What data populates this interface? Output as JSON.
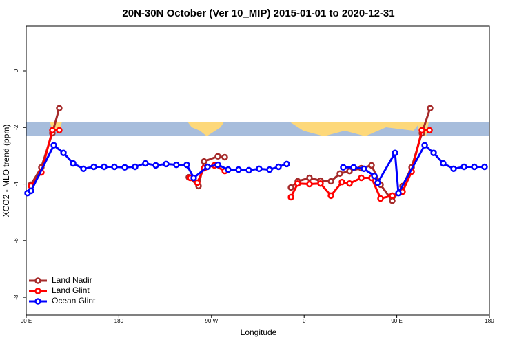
{
  "chart_data": {
    "type": "line",
    "title": "20N-30N October (Ver 10_MIP)   2015-01-01 to 2020-12-31",
    "x_label": "Longitude",
    "y_label": "XCO2 - MLO trend (ppm)",
    "xlim": [
      90,
      540
    ],
    "ylim": [
      -8.63,
      1.58
    ],
    "xticks": [
      {
        "value": 90,
        "label": "90 E"
      },
      {
        "value": 180,
        "label": "180"
      },
      {
        "value": 270,
        "label": "90 W"
      },
      {
        "value": 360,
        "label": "0"
      },
      {
        "value": 450,
        "label": "90 E"
      },
      {
        "value": 540,
        "label": "180"
      }
    ],
    "yticks": [
      0,
      -2,
      -4,
      -6,
      -8
    ],
    "legend": "bottom-left",
    "series": [
      {
        "name": "Land Nadir",
        "color": "#a52a2a",
        "x": [
          94.7,
          104.7,
          115.4,
          122.1,
          null,
          248.0,
          257.4,
          262.8,
          276.2,
          282.9,
          null,
          347.2,
          353.8,
          365.2,
          375.9,
          386.0,
          394.7,
          404.1,
          415.5,
          425.5,
          434.2,
          445.6,
          455.6,
          464.4,
          474.4,
          482.4
        ],
        "values": [
          -4.02,
          -3.41,
          -2.2,
          -1.32,
          null,
          -3.76,
          -4.07,
          -3.2,
          -3.02,
          -3.05,
          null,
          -4.12,
          -3.9,
          -3.78,
          -3.88,
          -3.9,
          -3.63,
          -3.54,
          -3.44,
          -3.34,
          -4.02,
          -4.59,
          -4.07,
          -3.41,
          -2.2,
          -1.32
        ]
      },
      {
        "name": "Land Glint",
        "color": "#ff0000",
        "x": [
          94.7,
          104.7,
          115.4,
          122.1,
          null,
          249.4,
          256.1,
          262.8,
          272.8,
          282.9,
          null,
          347.2,
          353.8,
          365.2,
          375.9,
          386.0,
          396.7,
          404.1,
          415.5,
          425.5,
          434.2,
          445.6,
          455.6,
          464.4,
          474.4,
          481.8
        ],
        "values": [
          -4.07,
          -3.59,
          -2.1,
          -2.1,
          null,
          -3.78,
          -3.95,
          -3.44,
          -3.34,
          -3.54,
          null,
          -4.46,
          -3.98,
          -4.0,
          -3.98,
          -4.41,
          -3.93,
          -3.98,
          -3.78,
          -3.78,
          -4.51,
          -4.41,
          -4.27,
          -3.56,
          -2.1,
          -2.1
        ]
      },
      {
        "name": "Ocean Glint",
        "color": "#0000ff",
        "x": [
          91.3,
          94.7,
          116.8,
          126.2,
          135.6,
          145.6,
          155.7,
          165.7,
          175.7,
          185.8,
          195.8,
          205.8,
          215.9,
          225.9,
          235.9,
          246.0,
          252.7,
          266.1,
          276.2,
          286.2,
          296.3,
          306.3,
          316.3,
          326.4,
          335.1,
          343.1,
          null,
          398.0,
          408.1,
          418.1,
          428.2,
          431.5,
          448.3,
          451.6,
          477.1,
          485.8,
          495.1,
          505.2,
          515.3,
          525.3,
          535.3
        ],
        "values": [
          -4.32,
          -4.24,
          -2.63,
          -2.9,
          -3.27,
          -3.46,
          -3.39,
          -3.39,
          -3.39,
          -3.41,
          -3.39,
          -3.27,
          -3.34,
          -3.29,
          -3.32,
          -3.32,
          -3.78,
          -3.39,
          -3.32,
          -3.49,
          -3.49,
          -3.51,
          -3.46,
          -3.49,
          -3.39,
          -3.29,
          null,
          -3.41,
          -3.41,
          -3.46,
          -3.71,
          -3.95,
          -2.9,
          -4.32,
          -2.63,
          -2.9,
          -3.27,
          -3.46,
          -3.39,
          -3.39,
          -3.39
        ]
      }
    ]
  }
}
